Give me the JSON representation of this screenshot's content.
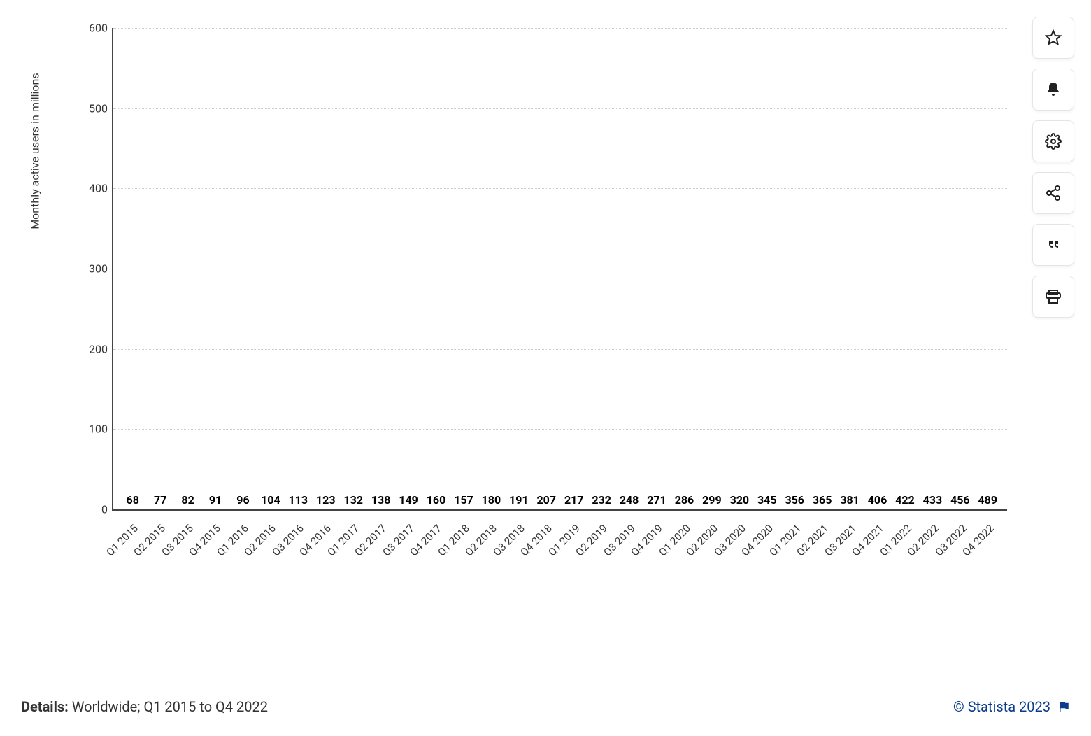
{
  "chart": {
    "type": "bar",
    "y_axis_label": "Monthly active users in millions",
    "ylim": [
      0,
      600
    ],
    "ytick_step": 100,
    "y_ticks": [
      0,
      100,
      200,
      300,
      400,
      500,
      600
    ],
    "bar_color": "#2950b4",
    "grid_color": "#cccccc",
    "axis_color": "#444444",
    "background_color": "#ffffff",
    "value_label_color": "#000000",
    "value_label_fontsize": 16,
    "value_label_fontweight": 700,
    "tick_label_fontsize": 16,
    "x_label_rotation_deg": -45,
    "categories": [
      "Q1 2015",
      "Q2 2015",
      "Q3 2015",
      "Q4 2015",
      "Q1 2016",
      "Q2 2016",
      "Q3 2016",
      "Q4 2016",
      "Q1 2017",
      "Q2 2017",
      "Q3 2017",
      "Q4 2017",
      "Q1 2018",
      "Q2 2018",
      "Q3 2018",
      "Q4 2018",
      "Q1 2019",
      "Q2 2019",
      "Q3 2019",
      "Q4 2019",
      "Q1 2020",
      "Q2 2020",
      "Q3 2020",
      "Q4 2020",
      "Q1 2021",
      "Q2 2021",
      "Q3 2021",
      "Q4 2021",
      "Q1 2022",
      "Q2 2022",
      "Q3 2022",
      "Q4 2022"
    ],
    "values": [
      68,
      77,
      82,
      91,
      96,
      104,
      113,
      123,
      132,
      138,
      149,
      160,
      157,
      180,
      191,
      207,
      217,
      232,
      248,
      271,
      286,
      299,
      320,
      345,
      356,
      365,
      381,
      406,
      422,
      433,
      456,
      489
    ]
  },
  "footer": {
    "details_label": "Details:",
    "details_text": " Worldwide; Q1 2015 to Q4 2022",
    "attribution": "© Statista 2023"
  },
  "toolbar": {
    "items": [
      {
        "name": "star-icon"
      },
      {
        "name": "bell-icon"
      },
      {
        "name": "gear-icon"
      },
      {
        "name": "share-icon"
      },
      {
        "name": "quote-icon"
      },
      {
        "name": "print-icon"
      }
    ]
  }
}
